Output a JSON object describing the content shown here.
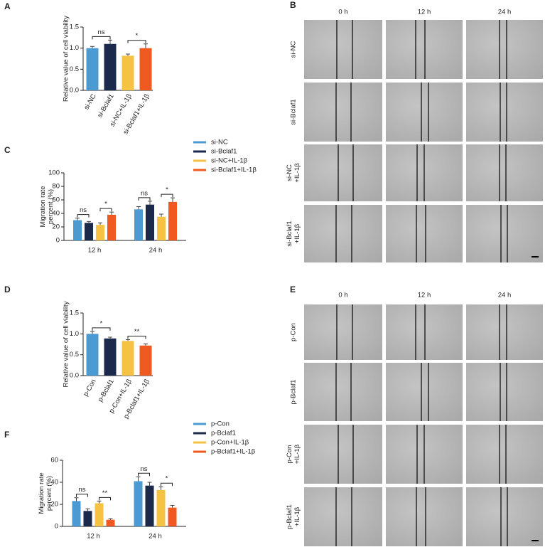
{
  "chart_data": [
    {
      "type": "bar",
      "panel": "A",
      "ylabel": [
        "Relative value of cell viability"
      ],
      "categories": [
        "si-NC",
        "si-Bclaf1",
        "si-NC+IL-1β",
        "si-Bclaf1+IL-1β"
      ],
      "values": [
        1.0,
        1.1,
        0.82,
        1.0
      ],
      "errors": [
        0.04,
        0.09,
        0.04,
        0.1
      ],
      "colors": [
        "#4b9bd2",
        "#1b2a4b",
        "#f6c244",
        "#f0591f"
      ],
      "ylim": [
        0,
        1.5
      ],
      "yticks": [
        {
          "value": 0,
          "label": "0.0"
        },
        {
          "value": 0.5,
          "label": "0.5"
        },
        {
          "value": 1,
          "label": "1.0"
        },
        {
          "value": 1.5,
          "label": "1.5"
        }
      ],
      "annotations": [
        "ns",
        "*"
      ]
    },
    {
      "type": "grouped_bar",
      "panel": "C",
      "ylabel": [
        "Migration rate",
        "percent (%)"
      ],
      "categories": [
        "12 h",
        "24 h"
      ],
      "series": [
        {
          "name": "si-NC",
          "color": "#4b9bd2",
          "values": [
            30,
            46
          ],
          "errors": [
            3,
            4
          ]
        },
        {
          "name": "si-Bclaf1",
          "color": "#1b2a4b",
          "values": [
            26,
            53
          ],
          "errors": [
            2,
            5
          ]
        },
        {
          "name": "si-NC+IL-1β",
          "color": "#f6c244",
          "values": [
            23,
            35
          ],
          "errors": [
            3,
            4
          ]
        },
        {
          "name": "si-Bclaf1+IL-1β",
          "color": "#f0591f",
          "values": [
            38,
            57
          ],
          "errors": [
            4,
            6
          ]
        }
      ],
      "ylim": [
        0,
        100
      ],
      "yticks": [
        0,
        20,
        40,
        60,
        80,
        100
      ],
      "annotations": [
        "ns",
        "*",
        "ns",
        "*"
      ]
    },
    {
      "type": "bar",
      "panel": "D",
      "ylabel": [
        "Relative value of cell viability"
      ],
      "categories": [
        "p-Con",
        "p-Bclaf1",
        "p-Con+IL-1β",
        "p-Bclaf1+IL-1β"
      ],
      "values": [
        1.0,
        0.89,
        0.83,
        0.72
      ],
      "errors": [
        0.06,
        0.03,
        0.03,
        0.04
      ],
      "colors": [
        "#4b9bd2",
        "#1b2a4b",
        "#f6c244",
        "#f0591f"
      ],
      "ylim": [
        0,
        1.5
      ],
      "yticks": [
        {
          "value": 0,
          "label": "0.0"
        },
        {
          "value": 0.5,
          "label": "0.5"
        },
        {
          "value": 1,
          "label": "1.0"
        },
        {
          "value": 1.5,
          "label": "1.5"
        }
      ],
      "annotations": [
        "*",
        "**"
      ]
    },
    {
      "type": "grouped_bar",
      "panel": "F",
      "ylabel": [
        "Migration rate",
        "percent (%)"
      ],
      "categories": [
        "12 h",
        "24 h"
      ],
      "series": [
        {
          "name": "p-Con",
          "color": "#4b9bd2",
          "values": [
            23,
            41
          ],
          "errors": [
            3,
            4
          ]
        },
        {
          "name": "p-Bclaf1",
          "color": "#1b2a4b",
          "values": [
            14,
            37
          ],
          "errors": [
            2,
            3
          ]
        },
        {
          "name": "p-Con+IL-1β",
          "color": "#f6c244",
          "values": [
            21,
            33
          ],
          "errors": [
            2,
            3
          ]
        },
        {
          "name": "p-Bclaf1+IL-1β",
          "color": "#f0591f",
          "values": [
            6,
            17
          ],
          "errors": [
            1,
            2
          ]
        }
      ],
      "ylim": [
        0,
        60
      ],
      "yticks": [
        0,
        20,
        40,
        60
      ],
      "annotations": [
        "ns",
        "**",
        "ns",
        "*"
      ]
    }
  ],
  "panels": [
    {
      "label": "B",
      "columns": [
        "0 h",
        "12 h",
        "24 h"
      ],
      "rows": [
        [
          "si-NC"
        ],
        [
          "si-Bclaf1"
        ],
        [
          "si-NC",
          "+IL-1β"
        ],
        [
          "si-Bclaf1",
          "+IL-1β"
        ]
      ]
    },
    {
      "label": "E",
      "columns": [
        "0 h",
        "12 h",
        "24 h"
      ],
      "rows": [
        [
          "p-Con"
        ],
        [
          "p-Bclaf1"
        ],
        [
          "p-Con",
          "+IL-1β"
        ],
        [
          "p-Bclaf1",
          "+IL-1β"
        ]
      ]
    }
  ]
}
